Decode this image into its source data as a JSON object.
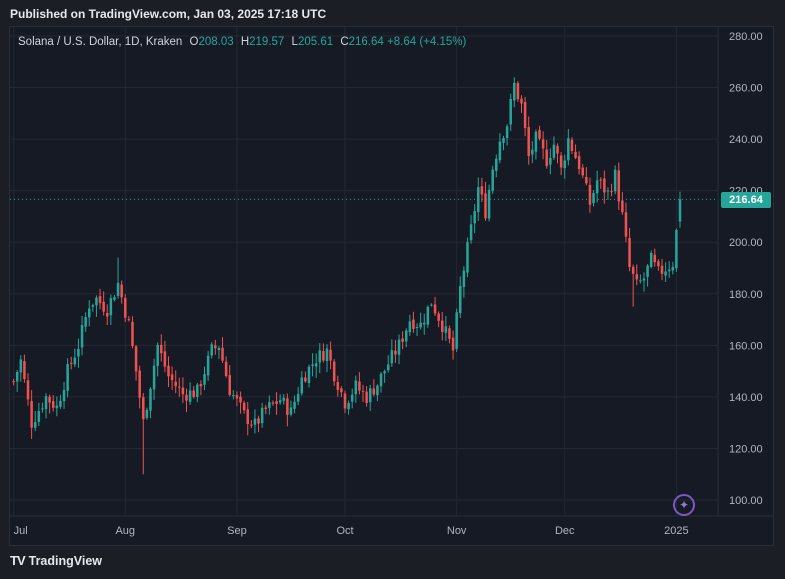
{
  "header": {
    "published": "Published on TradingView.com, Jan 03, 2025 17:18 UTC"
  },
  "legend": {
    "symbol": "Solana / U.S. Dollar, 1D, Kraken",
    "o_label": "O",
    "o": "208.03",
    "h_label": "H",
    "h": "219.57",
    "l_label": "L",
    "l": "205.61",
    "c_label": "C",
    "c": "216.64",
    "change": "+8.64 (+4.15%)"
  },
  "price_tag": "216.64",
  "footer": {
    "logo": "TV",
    "brand": "TradingView"
  },
  "colors": {
    "up": "#26a69a",
    "down": "#ef5350",
    "grid": "#232834",
    "accent": "#7e57c2"
  },
  "chart_data": {
    "type": "candlestick",
    "title": "Solana / U.S. Dollar, 1D, Kraken",
    "ylim": [
      92,
      282
    ],
    "yticks": [
      280,
      260,
      240,
      220,
      200,
      180,
      160,
      140,
      120,
      100
    ],
    "ytick_labels": [
      "280.00",
      "260.00",
      "240.00",
      "220.00",
      "200.00",
      "180.00",
      "160.00",
      "140.00",
      "120.00",
      "100.00"
    ],
    "xtick_labels": [
      "Jul",
      "Aug",
      "Sep",
      "Oct",
      "Nov",
      "Dec",
      "2025"
    ],
    "xtick_days": [
      0,
      31,
      62,
      92,
      123,
      153,
      184
    ],
    "last_price": 216.64,
    "day_range": [
      -1,
      187
    ],
    "waypoints": [
      {
        "d": 0,
        "p": 146
      },
      {
        "d": 2,
        "p": 154
      },
      {
        "d": 5,
        "p": 130
      },
      {
        "d": 9,
        "p": 140
      },
      {
        "d": 12,
        "p": 136
      },
      {
        "d": 15,
        "p": 150
      },
      {
        "d": 18,
        "p": 160
      },
      {
        "d": 21,
        "p": 176
      },
      {
        "d": 23,
        "p": 178
      },
      {
        "d": 26,
        "p": 174
      },
      {
        "d": 29,
        "p": 184
      },
      {
        "d": 32,
        "p": 168
      },
      {
        "d": 34,
        "p": 150
      },
      {
        "d": 36,
        "p": 130
      },
      {
        "d": 38,
        "p": 145
      },
      {
        "d": 40,
        "p": 160
      },
      {
        "d": 43,
        "p": 148
      },
      {
        "d": 47,
        "p": 141
      },
      {
        "d": 51,
        "p": 142
      },
      {
        "d": 55,
        "p": 158
      },
      {
        "d": 57,
        "p": 160
      },
      {
        "d": 60,
        "p": 143
      },
      {
        "d": 64,
        "p": 133
      },
      {
        "d": 67,
        "p": 129
      },
      {
        "d": 70,
        "p": 135
      },
      {
        "d": 74,
        "p": 139
      },
      {
        "d": 77,
        "p": 134
      },
      {
        "d": 80,
        "p": 147
      },
      {
        "d": 84,
        "p": 155
      },
      {
        "d": 87,
        "p": 158
      },
      {
        "d": 89,
        "p": 149
      },
      {
        "d": 92,
        "p": 138
      },
      {
        "d": 95,
        "p": 144
      },
      {
        "d": 98,
        "p": 140
      },
      {
        "d": 101,
        "p": 145
      },
      {
        "d": 104,
        "p": 153
      },
      {
        "d": 107,
        "p": 160
      },
      {
        "d": 110,
        "p": 170
      },
      {
        "d": 113,
        "p": 168
      },
      {
        "d": 116,
        "p": 177
      },
      {
        "d": 119,
        "p": 168
      },
      {
        "d": 122,
        "p": 158
      },
      {
        "d": 124,
        "p": 182
      },
      {
        "d": 127,
        "p": 205
      },
      {
        "d": 129,
        "p": 221
      },
      {
        "d": 131,
        "p": 212
      },
      {
        "d": 133,
        "p": 229
      },
      {
        "d": 135,
        "p": 240
      },
      {
        "d": 137,
        "p": 246
      },
      {
        "d": 139,
        "p": 261
      },
      {
        "d": 141,
        "p": 253
      },
      {
        "d": 143,
        "p": 233
      },
      {
        "d": 145,
        "p": 240
      },
      {
        "d": 148,
        "p": 232
      },
      {
        "d": 150,
        "p": 238
      },
      {
        "d": 152,
        "p": 228
      },
      {
        "d": 154,
        "p": 240
      },
      {
        "d": 157,
        "p": 230
      },
      {
        "d": 160,
        "p": 215
      },
      {
        "d": 162,
        "p": 224
      },
      {
        "d": 165,
        "p": 219
      },
      {
        "d": 167,
        "p": 226
      },
      {
        "d": 169,
        "p": 210
      },
      {
        "d": 171,
        "p": 190
      },
      {
        "d": 173,
        "p": 183
      },
      {
        "d": 175,
        "p": 186
      },
      {
        "d": 177,
        "p": 193
      },
      {
        "d": 179,
        "p": 188
      },
      {
        "d": 181,
        "p": 190
      },
      {
        "d": 183,
        "p": 192
      },
      {
        "d": 184,
        "p": 204
      },
      {
        "d": 185,
        "p": 216.64
      }
    ],
    "extreme_wicks": [
      {
        "d": 36,
        "low": 110
      },
      {
        "d": 29,
        "high": 194
      },
      {
        "d": 139,
        "high": 264
      },
      {
        "d": 172,
        "low": 175
      }
    ]
  }
}
